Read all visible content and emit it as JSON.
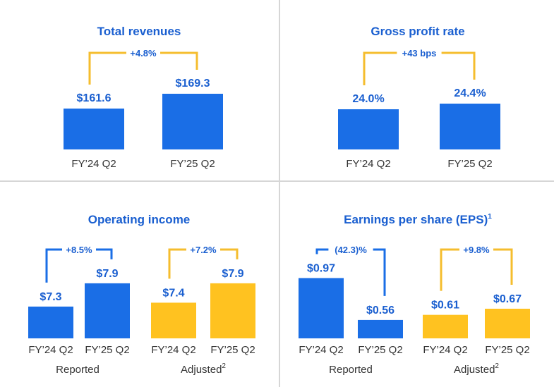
{
  "colors": {
    "blue": "#1a6ee6",
    "yellow": "#ffc220",
    "text_blue": "#1a5fd0",
    "bracket_yellow": "#f5bd2e",
    "bracket_blue": "#1a6ee6"
  },
  "chart_data": [
    {
      "type": "bar",
      "title": "Total revenues",
      "categories": [
        "FY’24 Q2",
        "FY’25 Q2"
      ],
      "values": [
        161.6,
        169.3
      ],
      "labels": [
        "$161.6",
        "$169.3"
      ],
      "bar_colors": [
        "blue",
        "blue"
      ],
      "change": {
        "label": "+4.8%",
        "color": "yellow"
      }
    },
    {
      "type": "bar",
      "title": "Gross profit rate",
      "categories": [
        "FY’24 Q2",
        "FY’25 Q2"
      ],
      "values": [
        24.0,
        24.4
      ],
      "labels": [
        "24.0%",
        "24.4%"
      ],
      "bar_colors": [
        "blue",
        "blue"
      ],
      "change": {
        "label": "+43 bps",
        "color": "yellow"
      }
    },
    {
      "type": "bar",
      "title": "Operating income",
      "categories": [
        "FY’24 Q2",
        "FY’25 Q2",
        "FY’24 Q2",
        "FY’25 Q2"
      ],
      "values": [
        7.3,
        7.9,
        7.4,
        7.9
      ],
      "labels": [
        "$7.3",
        "$7.9",
        "$7.4",
        "$7.9"
      ],
      "bar_colors": [
        "blue",
        "blue",
        "yellow",
        "yellow"
      ],
      "groups": [
        {
          "label": "Reported",
          "sup": "",
          "change": {
            "label": "+8.5%",
            "color": "blue"
          }
        },
        {
          "label": "Adjusted",
          "sup": "2",
          "change": {
            "label": "+7.2%",
            "color": "yellow"
          }
        }
      ]
    },
    {
      "type": "bar",
      "title": "Earnings per share (EPS)",
      "title_sup": "1",
      "categories": [
        "FY’24 Q2",
        "FY’25 Q2",
        "FY’24 Q2",
        "FY’25 Q2"
      ],
      "values": [
        0.97,
        0.56,
        0.61,
        0.67
      ],
      "labels": [
        "$0.97",
        "$0.56",
        "$0.61",
        "$0.67"
      ],
      "bar_colors": [
        "blue",
        "blue",
        "yellow",
        "yellow"
      ],
      "groups": [
        {
          "label": "Reported",
          "sup": "",
          "change": {
            "label": "(42.3)%",
            "color": "blue"
          }
        },
        {
          "label": "Adjusted",
          "sup": "2",
          "change": {
            "label": "+9.8%",
            "color": "yellow"
          }
        }
      ]
    }
  ]
}
